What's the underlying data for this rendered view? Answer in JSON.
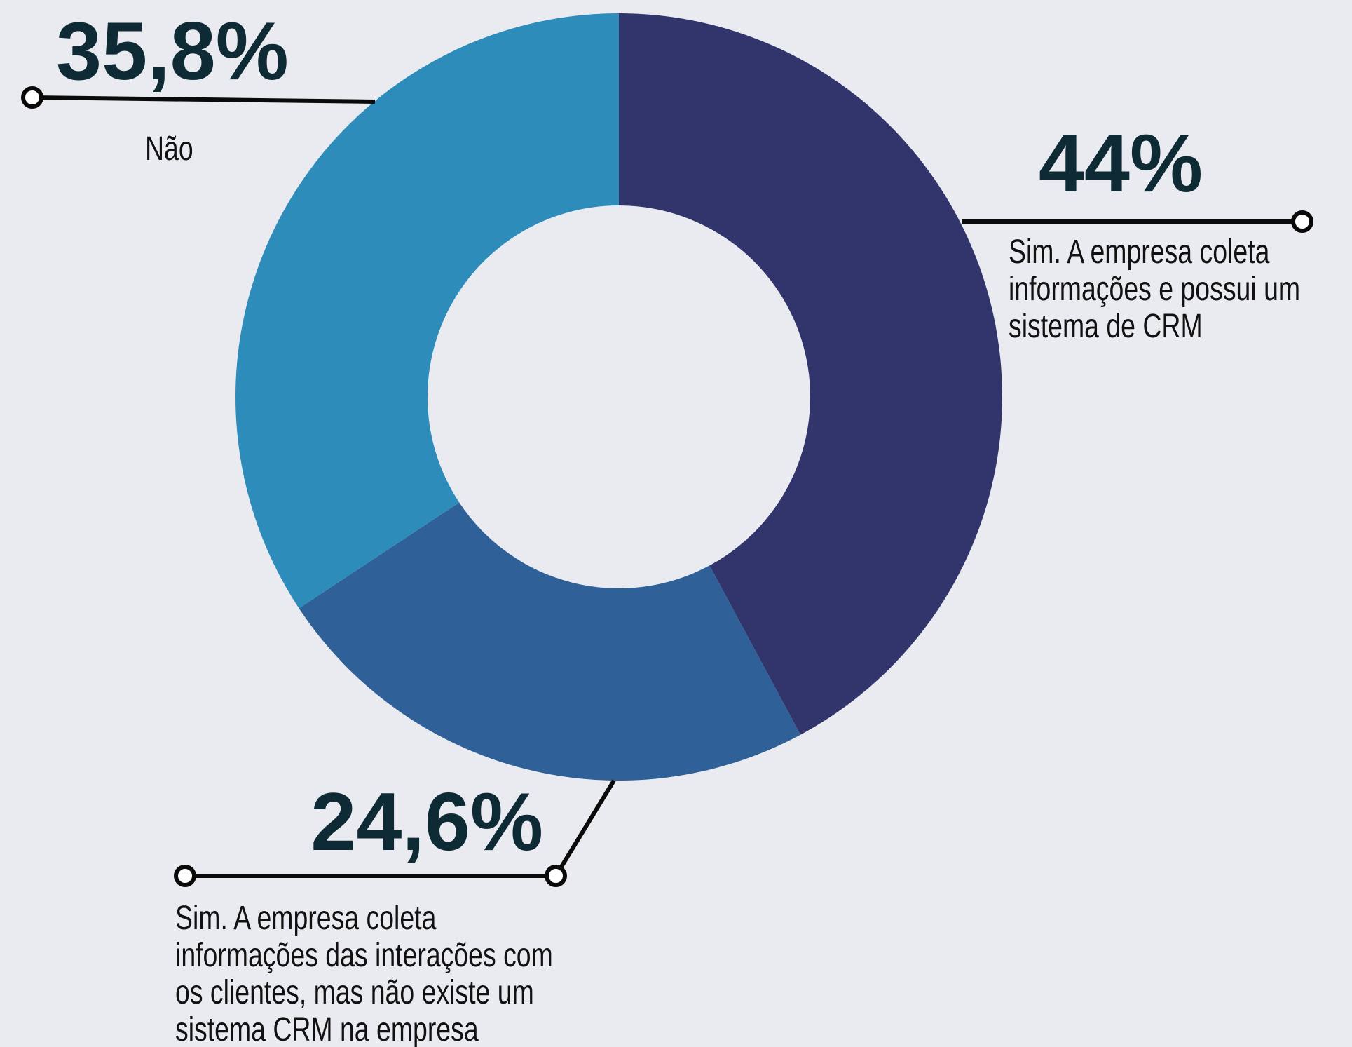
{
  "chart_data": {
    "type": "donut",
    "categories": [
      [
        "Sim. A empresa coleta",
        "informações e possui um",
        "sistema de CRM"
      ],
      [
        "Sim. A empresa coleta",
        "informações das interações com",
        "os clientes, mas não existe um",
        "sistema CRM na empresa"
      ],
      [
        "Não"
      ]
    ],
    "values": [
      44,
      24.6,
      35.8
    ],
    "value_labels": [
      "44%",
      "24,6%",
      "35,8%"
    ],
    "colors": [
      "#31356c",
      "#2f6097",
      "#2e8cba"
    ]
  }
}
